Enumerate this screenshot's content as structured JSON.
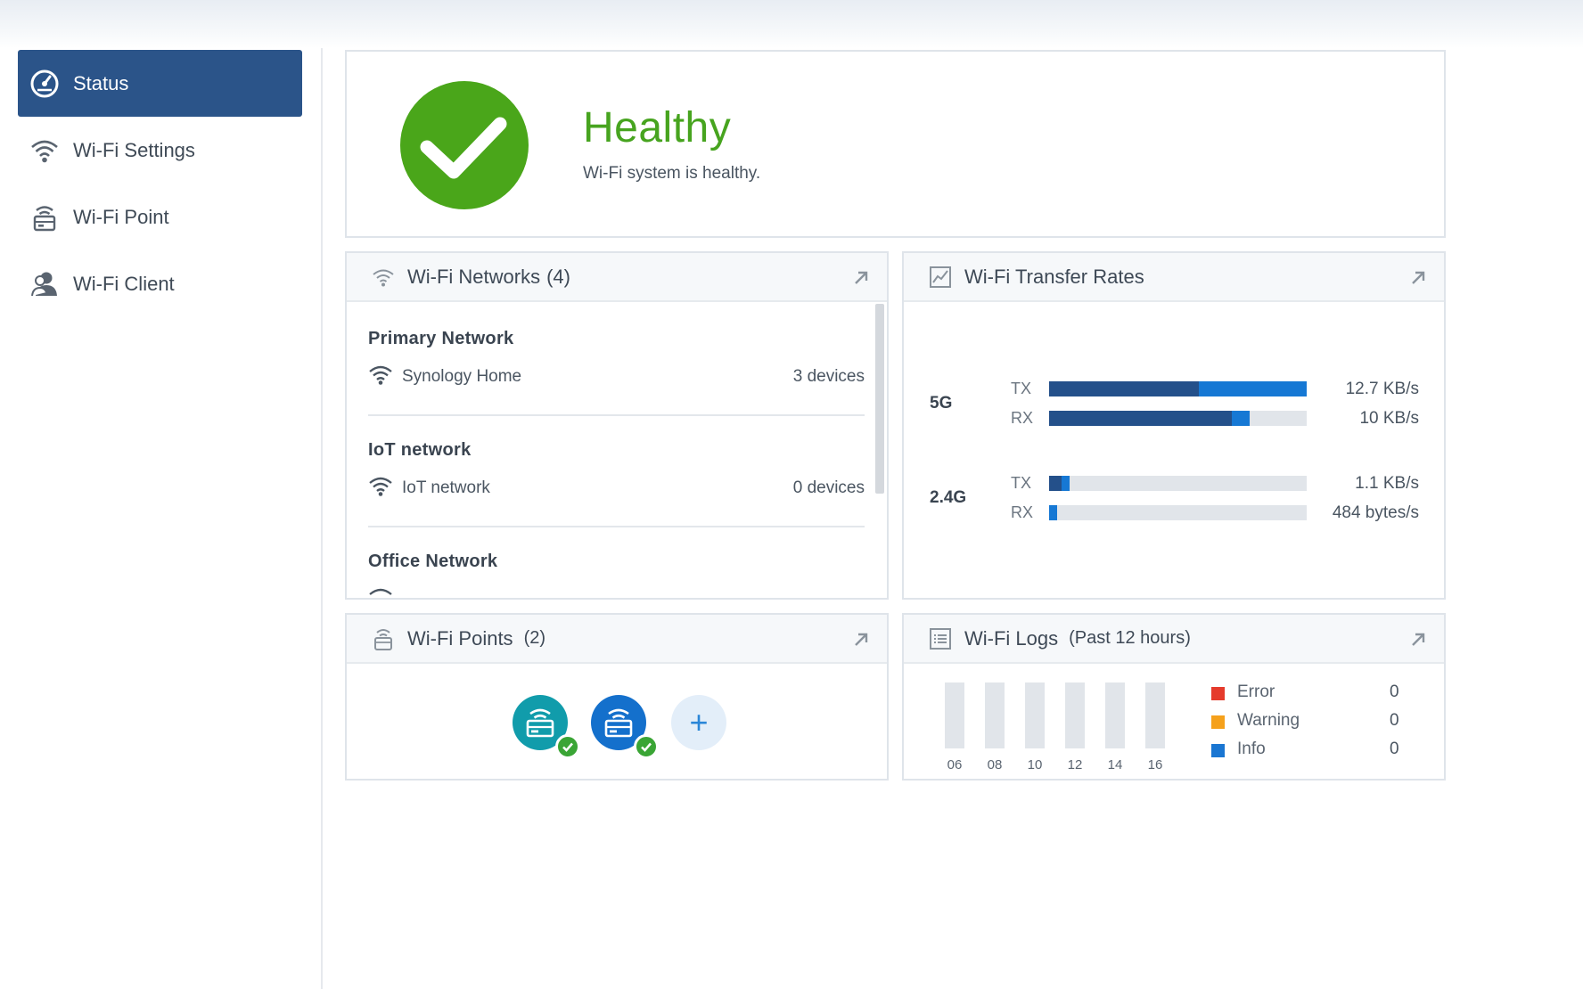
{
  "sidebar": {
    "items": [
      {
        "label": "Status",
        "icon": "dashboard-icon",
        "active": true
      },
      {
        "label": "Wi-Fi Settings",
        "icon": "wifi-icon",
        "active": false
      },
      {
        "label": "Wi-Fi Point",
        "icon": "router-icon",
        "active": false
      },
      {
        "label": "Wi-Fi Client",
        "icon": "user-icon",
        "active": false
      }
    ]
  },
  "status": {
    "title": "Healthy",
    "description": "Wi-Fi system is healthy.",
    "color": "#4aa61a"
  },
  "networks": {
    "title": "Wi-Fi Networks",
    "count": "(4)",
    "groups": [
      {
        "name": "Primary Network",
        "ssid": "Synology Home",
        "count": "3",
        "unit": "devices"
      },
      {
        "name": "IoT network",
        "ssid": "IoT network",
        "count": "0",
        "unit": "devices"
      },
      {
        "name": "Office Network",
        "ssid": "",
        "count": "",
        "unit": ""
      }
    ]
  },
  "transfer": {
    "title": "Wi-Fi Transfer Rates",
    "bands": [
      {
        "name": "5G",
        "rows": [
          {
            "label": "TX",
            "value": "12.7 KB/s",
            "dark": 0.58,
            "light": 0.42
          },
          {
            "label": "RX",
            "value": "10 KB/s",
            "dark": 0.71,
            "light": 0.07
          }
        ]
      },
      {
        "name": "2.4G",
        "rows": [
          {
            "label": "TX",
            "value": "1.1 KB/s",
            "dark": 0.05,
            "light": 0.03
          },
          {
            "label": "RX",
            "value": "484 bytes/s",
            "dark": 0.0,
            "light": 0.03
          }
        ]
      }
    ],
    "colors": {
      "dark": "#24508a",
      "light": "#1678d4",
      "track": "#e1e5ea"
    }
  },
  "points": {
    "title": "Wi-Fi Points",
    "count": "(2)",
    "devices": [
      {
        "icon": "router-icon",
        "color": "#119cab",
        "status": "ok"
      },
      {
        "icon": "router-icon",
        "color": "#1470cc",
        "status": "ok"
      }
    ],
    "add_label": "+"
  },
  "logs": {
    "title": "Wi-Fi Logs",
    "subtitle": "(Past 12 hours)",
    "ticks": [
      "06",
      "08",
      "10",
      "12",
      "14",
      "16"
    ],
    "legend": [
      {
        "label": "Error",
        "value": "0",
        "color": "#e53b2c"
      },
      {
        "label": "Warning",
        "value": "0",
        "color": "#f5a11c"
      },
      {
        "label": "Info",
        "value": "0",
        "color": "#1a76d2"
      }
    ]
  }
}
